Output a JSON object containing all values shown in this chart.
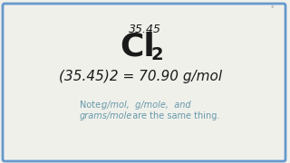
{
  "background_color": "#f0f0eb",
  "border_color": "#6699cc",
  "border_linewidth": 2.0,
  "molar_mass_label": "35.45",
  "element_cl": "Cl",
  "element_sub": "2",
  "equation_line": "(35.45)2 = 70.90 g/mol",
  "note_line1_normal": "Note: ",
  "note_line1_italic": "g/mol,  g/mole,  and",
  "note_line2_italic": "grams/mole",
  "note_line2_normal": "  are the same thing.",
  "watermark": "°",
  "text_color": "#1a1a1a",
  "note_color": "#6699aa",
  "fig_width": 3.2,
  "fig_height": 1.8,
  "dpi": 100
}
